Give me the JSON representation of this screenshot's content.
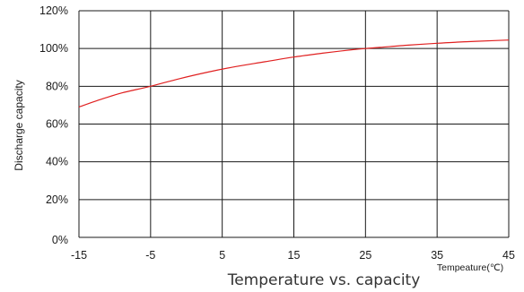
{
  "chart_data": {
    "type": "line",
    "title": "Temperature vs. capacity",
    "xlabel": "Tempeature(℃)",
    "ylabel": "Discharge capacity",
    "x_ticks": [
      "-15",
      "-5",
      "5",
      "15",
      "25",
      "35",
      "45"
    ],
    "y_ticks": [
      "0%",
      "20%",
      "40%",
      "60%",
      "80%",
      "100%",
      "120%"
    ],
    "xlim": [
      -15,
      45
    ],
    "ylim": [
      0,
      120
    ],
    "grid": true,
    "series": [
      {
        "color": "#e02020",
        "x": [
          -15,
          -12,
          -9,
          -5,
          -1,
          3,
          7,
          11,
          15,
          19,
          23,
          25,
          27,
          31,
          35,
          39,
          43,
          45
        ],
        "y": [
          69,
          73,
          76.5,
          80,
          84,
          87.5,
          90.5,
          93,
          95.5,
          97.5,
          99.3,
          100,
          100.6,
          101.8,
          102.8,
          103.6,
          104.2,
          104.5
        ]
      }
    ]
  }
}
